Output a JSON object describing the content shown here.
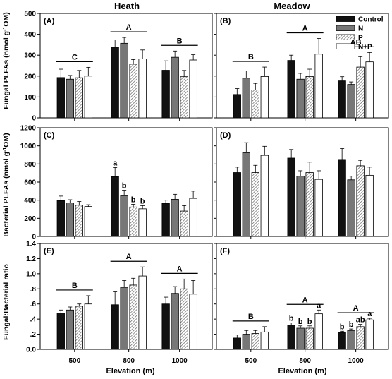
{
  "column_titles": [
    "Heath",
    "Meadow"
  ],
  "ylabels": [
    "Fungal PLFAs (nmol g",
    "-1",
    "OM)",
    "Bacterial PLFAs (nmol g",
    "-1",
    "OM)",
    "Fungal:Bacterial ratio"
  ],
  "xlabel": "Elevation (m)",
  "colors": {
    "Control": "#111111",
    "N": "#777777",
    "P": "hatch",
    "N+P": "#ffffff"
  },
  "chart_data": [
    {
      "type": "bar",
      "panel": "(A)",
      "categories": [
        "500",
        "800",
        "1000"
      ],
      "ylim": [
        0,
        500
      ],
      "yticks": [
        "0",
        "100",
        "200",
        "300",
        "400",
        "500"
      ],
      "series": [
        {
          "name": "Control",
          "values": [
            193,
            338,
            228
          ],
          "errors": [
            40,
            35,
            45
          ]
        },
        {
          "name": "N",
          "values": [
            185,
            357,
            290
          ],
          "errors": [
            18,
            28,
            30
          ]
        },
        {
          "name": "P",
          "values": [
            192,
            257,
            197
          ],
          "errors": [
            35,
            22,
            30
          ]
        },
        {
          "name": "N+P",
          "values": [
            200,
            282,
            277
          ],
          "errors": [
            42,
            43,
            25
          ]
        }
      ],
      "group_labels": [
        {
          "category": "500",
          "text": "C"
        },
        {
          "category": "800",
          "text": "A"
        },
        {
          "category": "1000",
          "text": "B"
        }
      ],
      "bar_letters": []
    },
    {
      "type": "bar",
      "panel": "(B)",
      "categories": [
        "500",
        "800",
        "1000"
      ],
      "ylim": [
        0,
        500
      ],
      "yticks": [
        "0",
        "100",
        "200",
        "300",
        "400",
        "500"
      ],
      "series": [
        {
          "name": "Control",
          "values": [
            112,
            275,
            177
          ],
          "errors": [
            28,
            25,
            20
          ]
        },
        {
          "name": "N",
          "values": [
            190,
            185,
            160
          ],
          "errors": [
            35,
            28,
            12
          ]
        },
        {
          "name": "P",
          "values": [
            133,
            198,
            243
          ],
          "errors": [
            32,
            35,
            50
          ]
        },
        {
          "name": "N+P",
          "values": [
            198,
            305,
            268
          ],
          "errors": [
            45,
            75,
            45
          ]
        }
      ],
      "group_labels": [
        {
          "category": "500",
          "text": "B"
        },
        {
          "category": "800",
          "text": "A"
        },
        {
          "category": "1000",
          "text": "AB"
        }
      ],
      "bar_letters": []
    },
    {
      "type": "bar",
      "panel": "(C)",
      "categories": [
        "500",
        "800",
        "1000"
      ],
      "ylim": [
        0,
        1200
      ],
      "yticks": [
        "0",
        "200",
        "400",
        "600",
        "800",
        "1000",
        "1200"
      ],
      "series": [
        {
          "name": "Control",
          "values": [
            395,
            660,
            365
          ],
          "errors": [
            50,
            100,
            35
          ]
        },
        {
          "name": "N",
          "values": [
            370,
            450,
            410
          ],
          "errors": [
            35,
            60,
            55
          ]
        },
        {
          "name": "P",
          "values": [
            345,
            325,
            280
          ],
          "errors": [
            40,
            30,
            60
          ]
        },
        {
          "name": "N+P",
          "values": [
            330,
            305,
            420
          ],
          "errors": [
            20,
            35,
            80
          ]
        }
      ],
      "group_labels": [],
      "bar_letters": [
        {
          "category": "800",
          "series": "Control",
          "text": "a"
        },
        {
          "category": "800",
          "series": "N",
          "text": "b"
        },
        {
          "category": "800",
          "series": "P",
          "text": "b"
        },
        {
          "category": "800",
          "series": "N+P",
          "text": "b"
        }
      ]
    },
    {
      "type": "bar",
      "panel": "(D)",
      "categories": [
        "500",
        "800",
        "1000"
      ],
      "ylim": [
        0,
        1200
      ],
      "yticks": [
        "0",
        "200",
        "400",
        "600",
        "800",
        "1000",
        "1200"
      ],
      "series": [
        {
          "name": "Control",
          "values": [
            705,
            865,
            850
          ],
          "errors": [
            60,
            95,
            120
          ]
        },
        {
          "name": "N",
          "values": [
            925,
            665,
            625
          ],
          "errors": [
            110,
            60,
            40
          ]
        },
        {
          "name": "P",
          "values": [
            705,
            705,
            780
          ],
          "errors": [
            80,
            115,
            60
          ]
        },
        {
          "name": "N+P",
          "values": [
            895,
            630,
            675
          ],
          "errors": [
            100,
            95,
            90
          ]
        }
      ],
      "group_labels": [],
      "bar_letters": []
    },
    {
      "type": "bar",
      "panel": "(E)",
      "categories": [
        "500",
        "800",
        "1000"
      ],
      "ylim": [
        0,
        1.4
      ],
      "yticks": [
        "0.0",
        ".2",
        ".4",
        ".6",
        ".8",
        "1.0",
        "1.2",
        "1.4"
      ],
      "series": [
        {
          "name": "Control",
          "values": [
            0.48,
            0.59,
            0.6
          ],
          "errors": [
            0.04,
            0.17,
            0.09
          ]
        },
        {
          "name": "N",
          "values": [
            0.52,
            0.82,
            0.74
          ],
          "errors": [
            0.04,
            0.09,
            0.09
          ]
        },
        {
          "name": "P",
          "values": [
            0.57,
            0.85,
            0.8
          ],
          "errors": [
            0.03,
            0.09,
            0.13
          ]
        },
        {
          "name": "N+P",
          "values": [
            0.6,
            0.97,
            0.73
          ],
          "errors": [
            0.11,
            0.12,
            0.18
          ]
        }
      ],
      "group_labels": [
        {
          "category": "500",
          "text": "B"
        },
        {
          "category": "800",
          "text": "A"
        },
        {
          "category": "1000",
          "text": "A"
        }
      ],
      "bar_letters": []
    },
    {
      "type": "bar",
      "panel": "(F)",
      "categories": [
        "500",
        "800",
        "1000"
      ],
      "ylim": [
        0,
        1.4
      ],
      "yticks": [
        "0.0",
        ".2",
        ".4",
        ".6",
        ".8",
        "1.0",
        "1.2",
        "1.4"
      ],
      "series": [
        {
          "name": "Control",
          "values": [
            0.15,
            0.32,
            0.22
          ],
          "errors": [
            0.04,
            0.03,
            0.02
          ]
        },
        {
          "name": "N",
          "values": [
            0.2,
            0.28,
            0.25
          ],
          "errors": [
            0.05,
            0.03,
            0.02
          ]
        },
        {
          "name": "P",
          "values": [
            0.21,
            0.28,
            0.3
          ],
          "errors": [
            0.04,
            0.03,
            0.03
          ]
        },
        {
          "name": "N+P",
          "values": [
            0.23,
            0.47,
            0.39
          ],
          "errors": [
            0.07,
            0.05,
            0.02
          ]
        }
      ],
      "group_labels": [
        {
          "category": "500",
          "text": "B"
        },
        {
          "category": "800",
          "text": "A"
        },
        {
          "category": "1000",
          "text": "A"
        }
      ],
      "bar_letters": [
        {
          "category": "800",
          "series": "Control",
          "text": "b"
        },
        {
          "category": "800",
          "series": "N",
          "text": "b"
        },
        {
          "category": "800",
          "series": "P",
          "text": "b"
        },
        {
          "category": "800",
          "series": "N+P",
          "text": "a"
        },
        {
          "category": "1000",
          "series": "Control",
          "text": "b"
        },
        {
          "category": "1000",
          "series": "N",
          "text": "b"
        },
        {
          "category": "1000",
          "series": "P",
          "text": "ab"
        },
        {
          "category": "1000",
          "series": "N+P",
          "text": "a"
        }
      ]
    }
  ]
}
